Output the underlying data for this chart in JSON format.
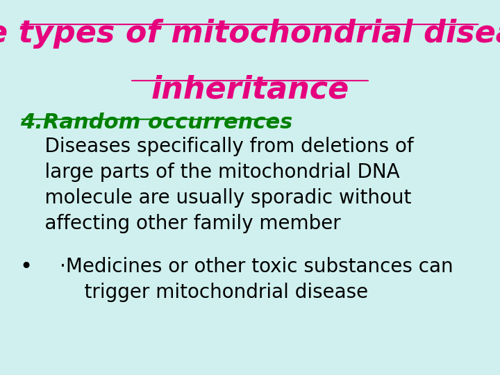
{
  "background_color": "#cff0ee",
  "title_line1": "The types of mitochondrial disease",
  "title_line2": "inheritance",
  "title_color": "#e6007e",
  "title_fontsize": 32,
  "title_fontstyle": "italic",
  "section_heading": "4.Random occurrences",
  "section_heading_color": "#008000",
  "section_heading_fontsize": 22,
  "body_color": "#000000",
  "body_fontsize": 20,
  "bullet": "•"
}
